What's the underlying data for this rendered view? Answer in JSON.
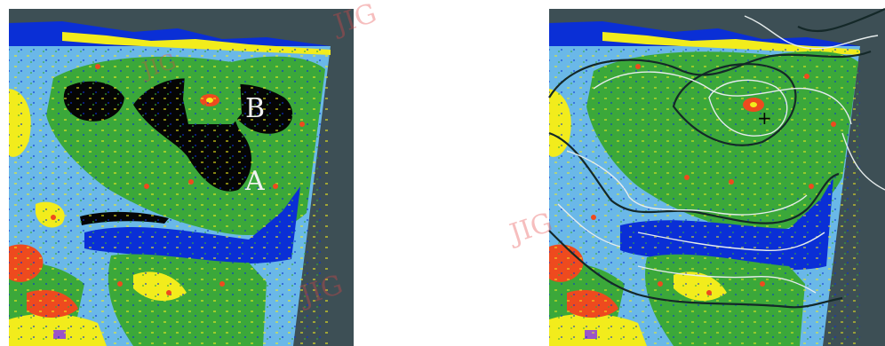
{
  "colors": {
    "background": "#ffffff",
    "frame_gray": "#3d4f55",
    "deep_blue": "#0a2fd6",
    "light_blue": "#6ab8e8",
    "green": "#3ba83a",
    "yellow": "#f2ec1c",
    "red_orange": "#ee4a1e",
    "black": "#050505",
    "purple": "#9a55c8",
    "contour_white": "#e6ecec",
    "contour_dark": "#142828"
  },
  "left_panel": {
    "labels": {
      "a": "A",
      "b": "B"
    }
  },
  "right_panel": {
    "marker": "+"
  },
  "watermarks": [
    "JIG",
    "JIG",
    "JIG",
    "JIG"
  ]
}
